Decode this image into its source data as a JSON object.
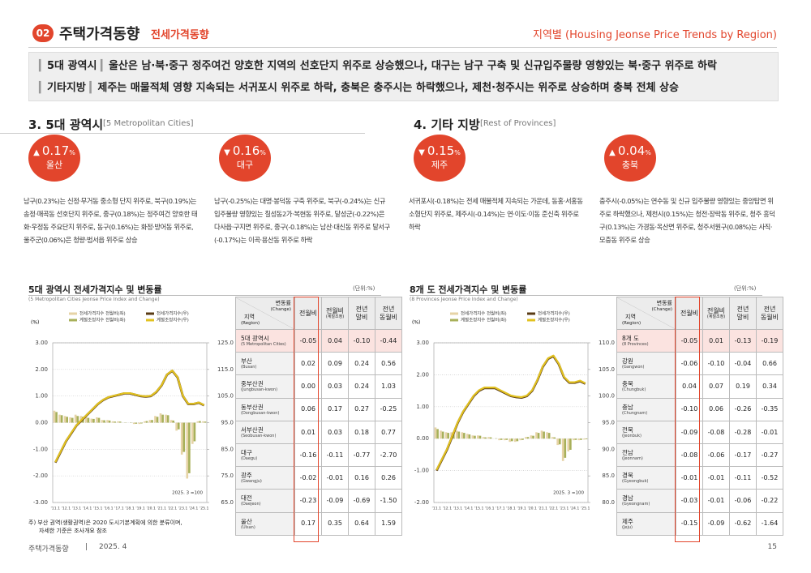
{
  "header": {
    "badge": "02",
    "title": "주택가격동향",
    "subtitle": "전세가격동향",
    "right": "지역별 (Housing Jeonse Price Trends by Region)"
  },
  "summary": [
    {
      "tag": "5대 광역시",
      "text": "울산은 남·북·중구 정주여건 양호한 지역의 선호단지 위주로 상승했으나, 대구는 남구 구축 및 신규입주물량 영향있는 북·중구 위주로 하락"
    },
    {
      "tag": "기타지방",
      "text": "제주는 매물적체 영향 지속되는 서귀포시 위주로 하락, 충북은 충주시는 하락했으나, 제천·청주시는 위주로 상승하며 충북 전체 상승"
    }
  ],
  "sections": [
    {
      "title": "3. 5대 광역시",
      "title_en": "[5 Metropolitan Cities]",
      "cards": [
        {
          "arrow": "▲",
          "value": "0.17",
          "unit": "%",
          "region": "울산",
          "text": "남구(0.23%)는 신정·무거동 중소형 단지 위주로, 북구(0.19%)는 송정·매곡동 선호단지 위주로, 중구(0.18%)는 정주여건 양호한 태화·우정동 주요단지 위주로, 동구(0.16%)는 화정·방어동 위주로, 울주군(0.06%)은 청량·범서읍 위주로 상승"
        },
        {
          "arrow": "▼",
          "value": "0.16",
          "unit": "%",
          "region": "대구",
          "text": "남구(-0.25%)는 대명·봉덕동 구축 위주로, 북구(-0.24%)는 신규 입주물량 영향있는 칠성동2가·복현동 위주로, 달성군(-0.22%)은 다사읍·구지면 위주로, 중구(-0.18%)는 남산·대신동 위주로 달서구(-0.17%)는 이곡·용산동 위주로 하락"
        }
      ]
    },
    {
      "title": "4. 기타 지방",
      "title_en": "[Rest of Provinces]",
      "cards": [
        {
          "arrow": "▼",
          "value": "0.15",
          "unit": "%",
          "region": "제주",
          "text": "서귀포시(-0.18%)는 전세 매물적체 지속되는 가운데, 동홍·서홍동 소형단지 위주로, 제주시(-0.14%)는 연·이도·이동 준신축 위주로 하락"
        },
        {
          "arrow": "▲",
          "value": "0.04",
          "unit": "%",
          "region": "충북",
          "text": "충주시(-0.05%)는 연수동 및 신규 입주물량 영향있는 중앙탑면 위주로 하락했으나, 제천시(0.15%)는 청전·장락동 위주로, 청주 흥덕구(0.13%)는 가경동·옥산면 위주로, 청주서원구(0.08%)는 사직·모충동 위주로 상승"
        }
      ]
    }
  ],
  "chart_data": [
    {
      "type": "bar-line",
      "title": "5대 광역시 전세가격지수 및 변동률",
      "subtitle": "(5 Metropolitan Cities Jeonse Price Index and Change)",
      "unit": "(단위:%)",
      "ylabel": "(%)",
      "note": "2025. 3 =100",
      "grid": true,
      "categories": [
        "'11.1",
        null,
        "'12.1",
        null,
        "'13.1",
        null,
        "'14.1",
        null,
        "'15.1",
        null,
        "'16.1",
        null,
        "'17.1",
        null,
        "'18.1",
        null,
        "'19.1",
        null,
        "'20.1",
        null,
        "'21.1",
        null,
        "'22.1",
        null,
        "'23.1",
        null,
        "'24.1",
        null,
        "'25.1"
      ],
      "ylim": [
        -3,
        3
      ],
      "yticks": [
        {
          "value": 3,
          "label": "3.00"
        },
        {
          "value": 2,
          "label": "2.00"
        },
        {
          "value": 1,
          "label": "1.00"
        },
        {
          "value": 0,
          "label": "0.00"
        },
        {
          "value": -1,
          "label": "-1.00"
        },
        {
          "value": -2,
          "label": "-2.00"
        },
        {
          "value": -3,
          "label": "-3.00"
        }
      ],
      "y2lim": [
        65,
        125
      ],
      "y2ticks": [
        {
          "value": 125,
          "label": "125.0"
        },
        {
          "value": 115,
          "label": "115.0"
        },
        {
          "value": 105,
          "label": "105.0"
        },
        {
          "value": 95,
          "label": "95.0"
        },
        {
          "value": 85,
          "label": "85.0"
        },
        {
          "value": 75,
          "label": "75.0"
        },
        {
          "value": 65,
          "label": "65.0"
        }
      ],
      "series": [
        {
          "name": "전세가격지수 전월비(좌)",
          "type": "bar",
          "color": "#e6d3a6",
          "values": [
            0.45,
            0.3,
            0.25,
            0.2,
            0.3,
            0.25,
            0.2,
            0.15,
            0.2,
            0.1,
            0.1,
            0.05,
            0.05,
            0,
            0,
            -0.05,
            -0.05,
            0.05,
            0.1,
            0.25,
            0.35,
            0.3,
            0.1,
            -0.3,
            -1.2,
            -2.1,
            -0.8,
            0.05,
            0.05
          ]
        },
        {
          "name": "계절조정지수 전월비(좌)",
          "type": "bar",
          "color": "#a8b05a",
          "values": [
            0.4,
            0.28,
            0.22,
            0.18,
            0.25,
            0.22,
            0.18,
            0.14,
            0.18,
            0.09,
            0.08,
            0.04,
            0.04,
            0.01,
            0.01,
            -0.04,
            -0.03,
            0.06,
            0.1,
            0.22,
            0.3,
            0.28,
            0.08,
            -0.25,
            -1.1,
            -1.9,
            -0.7,
            0.06,
            0.04
          ]
        },
        {
          "name": "전세가격지수(우)",
          "type": "line",
          "axis": "y2",
          "color": "#5a3b14",
          "values": [
            80,
            84,
            88,
            91,
            94,
            96,
            98,
            100,
            102,
            103.5,
            104.5,
            105,
            105.5,
            106,
            106,
            105.5,
            105,
            104.8,
            105,
            106.5,
            109,
            113,
            114.5,
            112,
            105,
            102,
            102,
            102.5,
            101.5
          ]
        },
        {
          "name": "계절조정지수(우)",
          "type": "line",
          "axis": "y2",
          "color": "#e2c220",
          "values": [
            80.2,
            84.2,
            88.1,
            91.2,
            94.1,
            96.2,
            98.1,
            100.1,
            102.1,
            103.6,
            104.6,
            105.1,
            105.6,
            106.1,
            106.1,
            105.6,
            105.1,
            104.9,
            105.1,
            106.6,
            109.1,
            113.1,
            114.6,
            112.1,
            105.1,
            102.1,
            102.1,
            102.6,
            101.6
          ]
        }
      ]
    },
    {
      "type": "bar-line",
      "title": "8개 도 전세가격지수 및 변동률",
      "subtitle": "(8 Provinces Jeonse Price Index and Change)",
      "unit": "(단위:%)",
      "ylabel": "(%)",
      "note": "2025. 3 =100",
      "grid": true,
      "categories": [
        "'11.1",
        null,
        "'12.1",
        null,
        "'13.1",
        null,
        "'14.1",
        null,
        "'15.1",
        null,
        "'16.1",
        null,
        "'17.1",
        null,
        "'18.1",
        null,
        "'19.1",
        null,
        "'20.1",
        null,
        "'21.1",
        null,
        "'22.1",
        null,
        "'23.1",
        null,
        "'24.1",
        null,
        "'25.1"
      ],
      "ylim": [
        -2,
        3
      ],
      "yticks": [
        {
          "value": 3,
          "label": "3.00"
        },
        {
          "value": 2,
          "label": "2.00"
        },
        {
          "value": 1,
          "label": "1.00"
        },
        {
          "value": 0,
          "label": "0.00"
        },
        {
          "value": -1,
          "label": "-1.00"
        },
        {
          "value": -2,
          "label": "-2.00"
        }
      ],
      "y2lim": [
        80,
        110
      ],
      "y2ticks": [
        {
          "value": 110,
          "label": "110.0"
        },
        {
          "value": 105,
          "label": "105.0"
        },
        {
          "value": 100,
          "label": "100.0"
        },
        {
          "value": 95,
          "label": "95.0"
        },
        {
          "value": 90,
          "label": "90.0"
        },
        {
          "value": 85,
          "label": "85.0"
        },
        {
          "value": 80,
          "label": "80.0"
        }
      ],
      "series": [
        {
          "name": "전세가격지수 전월비(좌)",
          "type": "bar",
          "color": "#e6d3a6",
          "values": [
            0.35,
            0.25,
            0.2,
            0.2,
            0.25,
            0.2,
            0.15,
            0.1,
            0.1,
            0.05,
            0.05,
            0,
            -0.05,
            -0.05,
            -0.1,
            -0.1,
            -0.05,
            0.05,
            0.1,
            0.2,
            0.25,
            0.2,
            0.05,
            -0.2,
            -0.7,
            -0.4,
            -0.05,
            -0.05,
            -0.03
          ]
        },
        {
          "name": "계절조정지수 전월비(좌)",
          "type": "bar",
          "color": "#a8b05a",
          "values": [
            0.3,
            0.22,
            0.18,
            0.18,
            0.22,
            0.18,
            0.13,
            0.09,
            0.09,
            0.04,
            0.04,
            0.01,
            -0.04,
            -0.04,
            -0.08,
            -0.08,
            -0.04,
            0.05,
            0.09,
            0.18,
            0.22,
            0.18,
            0.04,
            -0.18,
            -0.6,
            -0.35,
            -0.04,
            -0.04,
            -0.02
          ]
        },
        {
          "name": "전세가격지수(우)",
          "type": "line",
          "axis": "y2",
          "color": "#5a3b14",
          "values": [
            86,
            88,
            90,
            92.5,
            95,
            97,
            98.5,
            100,
            101,
            101.5,
            101.5,
            101.5,
            101,
            100.5,
            100,
            99.8,
            99.7,
            100,
            101,
            103,
            105.5,
            107,
            107.5,
            106,
            103.5,
            102.5,
            102.5,
            102.8,
            102.3
          ]
        },
        {
          "name": "계절조정지수(우)",
          "type": "line",
          "axis": "y2",
          "color": "#e2c220",
          "values": [
            86.1,
            88.1,
            90.1,
            92.6,
            95.1,
            97.1,
            98.6,
            100.1,
            101.1,
            101.6,
            101.6,
            101.6,
            101.1,
            100.6,
            100.1,
            99.9,
            99.8,
            100.1,
            101.1,
            103.1,
            105.6,
            107.1,
            107.6,
            106.1,
            103.6,
            102.6,
            102.6,
            102.9,
            102.4
          ]
        }
      ]
    }
  ],
  "tables": [
    {
      "change": "변동률",
      "change_en": "(Change)",
      "region": "지역",
      "region_en": "(Region)",
      "columns": [
        [
          "전월비"
        ],
        [
          "전월비",
          "(계절조정)"
        ],
        [
          "전년",
          "말비"
        ],
        [
          "전년",
          "동월비"
        ]
      ],
      "rows": [
        {
          "name": "5대 광역시",
          "name_en": "(5 Metropolitan Cities)",
          "values": [
            "-0.05",
            "0.04",
            "-0.10",
            "-0.44"
          ]
        },
        {
          "name": "부산",
          "name_en": "(Busan)",
          "values": [
            "0.02",
            "0.09",
            "0.24",
            "0.56"
          ]
        },
        {
          "name": "중부산권",
          "name_en": "(Jungbusan-kwon)",
          "values": [
            "0.00",
            "0.03",
            "0.24",
            "1.03"
          ]
        },
        {
          "name": "동부산권",
          "name_en": "(Dongbusan-kwon)",
          "values": [
            "0.06",
            "0.17",
            "0.27",
            "-0.25"
          ]
        },
        {
          "name": "서부산권",
          "name_en": "(Seobusan-kwon)",
          "values": [
            "0.01",
            "0.03",
            "0.18",
            "0.77"
          ]
        },
        {
          "name": "대구",
          "name_en": "(Daegu)",
          "values": [
            "-0.16",
            "-0.11",
            "-0.77",
            "-2.70"
          ]
        },
        {
          "name": "광주",
          "name_en": "(Gwangju)",
          "values": [
            "-0.02",
            "-0.01",
            "0.16",
            "0.26"
          ]
        },
        {
          "name": "대전",
          "name_en": "(Daejeon)",
          "values": [
            "-0.23",
            "-0.09",
            "-0.69",
            "-1.50"
          ]
        },
        {
          "name": "울산",
          "name_en": "(Ulsan)",
          "values": [
            "0.17",
            "0.35",
            "0.64",
            "1.59"
          ]
        }
      ]
    },
    {
      "change": "변동률",
      "change_en": "(Change)",
      "region": "지역",
      "region_en": "(Region)",
      "columns": [
        [
          "전월비"
        ],
        [
          "전월비",
          "(계절조정)"
        ],
        [
          "전년",
          "말비"
        ],
        [
          "전년",
          "동월비"
        ]
      ],
      "rows": [
        {
          "name": "8개 도",
          "name_en": "(8 Provinces)",
          "values": [
            "-0.05",
            "0.01",
            "-0.13",
            "-0.19"
          ]
        },
        {
          "name": "강원",
          "name_en": "(Gangwon)",
          "values": [
            "-0.06",
            "-0.10",
            "-0.04",
            "0.66"
          ]
        },
        {
          "name": "충북",
          "name_en": "(Chungbuk)",
          "values": [
            "0.04",
            "0.07",
            "0.19",
            "0.34"
          ]
        },
        {
          "name": "충남",
          "name_en": "(Chungnam)",
          "values": [
            "-0.10",
            "0.06",
            "-0.26",
            "-0.35"
          ]
        },
        {
          "name": "전북",
          "name_en": "(Jeonbuk)",
          "values": [
            "-0.09",
            "-0.08",
            "-0.28",
            "-0.01"
          ]
        },
        {
          "name": "전남",
          "name_en": "(Jeonnam)",
          "values": [
            "-0.08",
            "-0.06",
            "-0.17",
            "-0.27"
          ]
        },
        {
          "name": "경북",
          "name_en": "(Gyeongbuk)",
          "values": [
            "-0.01",
            "-0.01",
            "-0.11",
            "-0.52"
          ]
        },
        {
          "name": "경남",
          "name_en": "(Gyeongnam)",
          "values": [
            "-0.03",
            "-0.01",
            "-0.06",
            "-0.22"
          ]
        },
        {
          "name": "제주",
          "name_en": "(Jeju)",
          "values": [
            "-0.15",
            "-0.09",
            "-0.62",
            "-1.64"
          ]
        }
      ]
    }
  ],
  "footnote": [
    "주) 부산 권역(생활권역)은 2020 도시기본계획에 의한 분류이며,",
    "자세한 기준은 조사개요 참조"
  ],
  "footer": {
    "left": "주택가격동향",
    "separator": "|",
    "date": "2025. 4",
    "page": "15"
  }
}
